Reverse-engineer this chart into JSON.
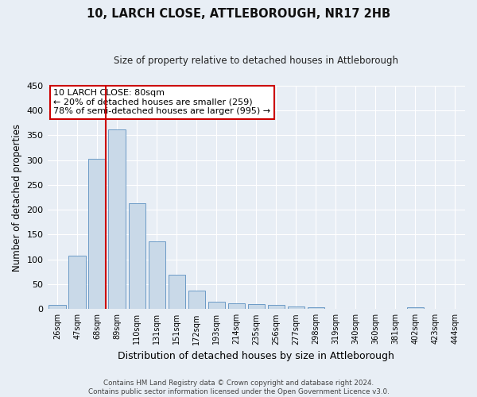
{
  "title": "10, LARCH CLOSE, ATTLEBOROUGH, NR17 2HB",
  "subtitle": "Size of property relative to detached houses in Attleborough",
  "xlabel": "Distribution of detached houses by size in Attleborough",
  "ylabel": "Number of detached properties",
  "bar_labels": [
    "26sqm",
    "47sqm",
    "68sqm",
    "89sqm",
    "110sqm",
    "131sqm",
    "151sqm",
    "172sqm",
    "193sqm",
    "214sqm",
    "235sqm",
    "256sqm",
    "277sqm",
    "298sqm",
    "319sqm",
    "340sqm",
    "360sqm",
    "381sqm",
    "402sqm",
    "423sqm",
    "444sqm"
  ],
  "bar_values": [
    8,
    108,
    302,
    362,
    213,
    137,
    70,
    38,
    15,
    12,
    10,
    8,
    5,
    3,
    1,
    0,
    0,
    0,
    3,
    0,
    0
  ],
  "bar_color": "#c9d9e8",
  "bar_edge_color": "#5a8fc0",
  "vline_color": "#cc0000",
  "annotation_title": "10 LARCH CLOSE: 80sqm",
  "annotation_line1": "← 20% of detached houses are smaller (259)",
  "annotation_line2": "78% of semi-detached houses are larger (995) →",
  "annotation_box_color": "#ffffff",
  "annotation_box_edge_color": "#cc0000",
  "ylim": [
    0,
    450
  ],
  "yticks": [
    0,
    50,
    100,
    150,
    200,
    250,
    300,
    350,
    400,
    450
  ],
  "footer1": "Contains HM Land Registry data © Crown copyright and database right 2024.",
  "footer2": "Contains public sector information licensed under the Open Government Licence v3.0.",
  "bg_color": "#e8eef5",
  "plot_bg_color": "#e8eef5"
}
